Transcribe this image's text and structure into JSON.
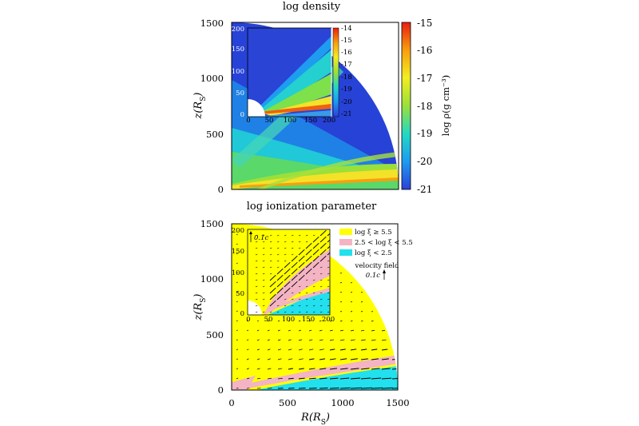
{
  "chart_data": [
    {
      "type": "heatmap",
      "title": "log density",
      "ylabel": "z(R_S)",
      "xlim": [
        0,
        1500
      ],
      "ylim": [
        0,
        1500
      ],
      "yticks": [
        "0",
        "500",
        "1000",
        "1500"
      ],
      "colorbar": {
        "label": "log ρ(g cm⁻³)",
        "range": [
          -21,
          -15
        ],
        "ticks": [
          "-15",
          "-16",
          "-17",
          "-18",
          "-19",
          "-20",
          "-21"
        ]
      },
      "inset": {
        "xlim": [
          0,
          200
        ],
        "ylim": [
          0,
          200
        ],
        "xticks": [
          "0",
          "50",
          "100",
          "150",
          "200"
        ],
        "yticks": [
          "0",
          "50",
          "100",
          "150",
          "200"
        ],
        "colorbar_range": [
          -21,
          -14
        ],
        "colorbar_ticks": [
          "-14",
          "-15",
          "-16",
          "-17",
          "-18",
          "-19",
          "-20",
          "-21"
        ]
      }
    },
    {
      "type": "heatmap",
      "title": "log ionization parameter",
      "xlabel": "R(R_S)",
      "ylabel": "z(R_S)",
      "xlim": [
        0,
        1500
      ],
      "ylim": [
        0,
        1500
      ],
      "xticks": [
        "0",
        "500",
        "1000",
        "1500"
      ],
      "yticks": [
        "0",
        "500",
        "1000",
        "1500"
      ],
      "legend": [
        {
          "label": "log ξ ≥ 5.5",
          "color": "#ffff00"
        },
        {
          "label": "2.5 < log ξ < 5.5",
          "color": "#f4b4c4"
        },
        {
          "label": "log ξ < 2.5",
          "color": "#22e0ee"
        }
      ],
      "legend_position": "top-right",
      "velocity_key": {
        "title": "velocity field",
        "label": "0.1c"
      },
      "inset": {
        "xlim": [
          0,
          200
        ],
        "ylim": [
          0,
          200
        ],
        "xticks": [
          "0",
          "50",
          "100",
          "150",
          "200"
        ],
        "yticks": [
          "0",
          "50",
          "100",
          "150",
          "200"
        ],
        "velocity_key_label": "0.1c"
      }
    }
  ]
}
